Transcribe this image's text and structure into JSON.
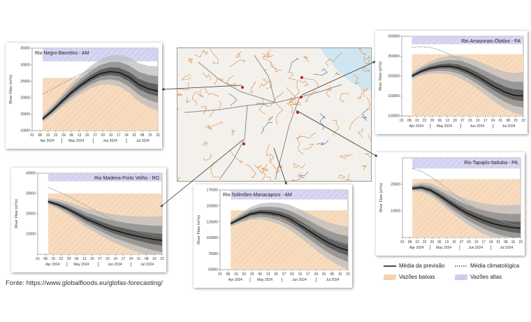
{
  "source": "Fonte: https://www.globalfloods.eu/glofas-forecasting/",
  "legend": {
    "forecast_mean": "Média da previsão",
    "clim_mean": "Média climatológica",
    "low_flows": "Vazões baixas",
    "high_flows": "Vazões altas"
  },
  "colors": {
    "low_fill": "#f7d8b8",
    "high_fill": "#d3d2f2",
    "band_outer": "#bdbdbd",
    "band_mid": "#8c8c8c",
    "band_inner": "#555555",
    "mean_line": "#111111",
    "river_map": "#d9843a",
    "arrow": "#333333"
  },
  "map": {
    "description_icon": "river-network-map"
  },
  "chart_data": [
    {
      "id": "negro",
      "type": "line",
      "title": "Rio Negro-Barcelos - AM",
      "ylabel": "River Flow (m³/s)",
      "ylim": [
        10000,
        35000
      ],
      "yticks": [
        10000,
        15000,
        20000,
        25000,
        30000,
        35000
      ],
      "xtick_labels": [
        "01",
        "08",
        "15",
        "22",
        "29",
        "06",
        "13",
        "20",
        "27",
        "03",
        "10",
        "17",
        "24",
        "01",
        "08",
        "15",
        "22"
      ],
      "month_labels": [
        "Apr 2024",
        "May 2024",
        "Jun 2024",
        "Jul 2024"
      ],
      "forecast_days": [
        0,
        7,
        14,
        21,
        28,
        35,
        42,
        49,
        56,
        63,
        70,
        77,
        84
      ],
      "mean": [
        13500,
        16000,
        18800,
        21500,
        23800,
        25800,
        27300,
        27900,
        27600,
        26200,
        24000,
        22700,
        22000
      ],
      "clim": [
        21000,
        22600,
        24200,
        25800,
        27200,
        28500,
        29400,
        29800,
        29700,
        28900,
        27500,
        26000,
        25000
      ],
      "low_threshold": [
        26000,
        26000,
        26000,
        26000,
        26000,
        26000,
        26000,
        26000,
        26000,
        26000,
        26000,
        26000,
        26000
      ],
      "high_threshold": [
        31000,
        31000,
        31000,
        31000,
        31000,
        31000,
        31000,
        31000,
        31000,
        31000,
        31000,
        31000,
        31000
      ]
    },
    {
      "id": "amazonas",
      "type": "line",
      "title": "Rio Amazonas-Óbidos - PA",
      "ylabel": "River Flow (m³/s)",
      "ylim": [
        100000,
        300000
      ],
      "yticks": [
        100000,
        150000,
        200000,
        250000,
        300000
      ],
      "xtick_labels": [
        "01",
        "08",
        "15",
        "22",
        "29",
        "06",
        "13",
        "20",
        "27",
        "03",
        "10",
        "17",
        "24",
        "01",
        "08",
        "15",
        "22"
      ],
      "month_labels": [
        "Apr 2024",
        "May 2024",
        "Jun 2024",
        "Jul 2024"
      ],
      "forecast_days": [
        0,
        7,
        14,
        21,
        28,
        35,
        42,
        49,
        56,
        63,
        70,
        77,
        84
      ],
      "mean": [
        200000,
        212000,
        220000,
        224000,
        225000,
        221000,
        212000,
        200000,
        186000,
        172000,
        160000,
        152000,
        150000
      ],
      "clim": [
        272000,
        274000,
        272000,
        265000,
        255000,
        243000,
        230000,
        217000,
        204000,
        191000,
        180000,
        170000,
        165000
      ],
      "low_threshold": [
        255000,
        255000,
        255000,
        255000,
        255000,
        255000,
        255000,
        255000,
        255000,
        255000,
        255000,
        255000,
        255000
      ],
      "high_threshold": [
        280000,
        280000,
        280000,
        280000,
        280000,
        280000,
        280000,
        280000,
        280000,
        280000,
        280000,
        280000,
        280000
      ]
    },
    {
      "id": "madeira",
      "type": "line",
      "title": "Rio Madeira-Porto Velho - RO",
      "ylabel": "River Flow (m³/s)",
      "ylim": [
        0,
        40000
      ],
      "yticks": [
        10000,
        20000,
        30000,
        40000
      ],
      "xtick_labels": [
        "01",
        "08",
        "15",
        "22",
        "29",
        "06",
        "13",
        "20",
        "27",
        "03",
        "10",
        "17",
        "24",
        "01",
        "08",
        "15",
        "22"
      ],
      "month_labels": [
        "Apr 2024",
        "May 2024",
        "Jun 2024",
        "Jul 2024"
      ],
      "forecast_days": [
        0,
        7,
        14,
        21,
        28,
        35,
        42,
        49,
        56,
        63,
        70,
        77,
        84
      ],
      "mean": [
        26000,
        24500,
        22500,
        20000,
        17500,
        15500,
        13500,
        11800,
        10500,
        9300,
        8300,
        7400,
        6800
      ],
      "clim": [
        33000,
        31000,
        29000,
        26500,
        24000,
        21500,
        19000,
        16500,
        14000,
        12000,
        10500,
        9500,
        8800
      ],
      "low_threshold": [
        30000,
        30000,
        30000,
        30000,
        30000,
        30000,
        30000,
        30000,
        30000,
        30000,
        30000,
        30000,
        30000
      ],
      "high_threshold": [
        36000,
        36000,
        36000,
        36000,
        36000,
        36000,
        36000,
        36000,
        36000,
        36000,
        36000,
        36000,
        36000
      ]
    },
    {
      "id": "solimoes",
      "type": "line",
      "title": "Rio Solimões-Manacapuru - AM",
      "ylabel": "River Flow (m³/s)",
      "ylim": [
        50000,
        175000
      ],
      "yticks": [
        50000,
        75000,
        100000,
        125000,
        150000,
        175000
      ],
      "xtick_labels": [
        "01",
        "08",
        "15",
        "22",
        "29",
        "06",
        "13",
        "20",
        "27",
        "03",
        "10",
        "17",
        "24",
        "01",
        "08",
        "15",
        "22"
      ],
      "month_labels": [
        "Apr 2024",
        "May 2024",
        "Jun 2024",
        "Jul 2024"
      ],
      "forecast_days": [
        0,
        7,
        14,
        21,
        28,
        35,
        42,
        49,
        56,
        63,
        70,
        77,
        84
      ],
      "mean": [
        122000,
        130000,
        137000,
        140000,
        139000,
        136000,
        130000,
        121000,
        111000,
        101000,
        92000,
        85000,
        80000
      ],
      "clim": [
        122000,
        126000,
        130000,
        133000,
        134000,
        133000,
        129000,
        123000,
        116000,
        108000,
        100000,
        93000,
        88000
      ],
      "low_threshold": [
        143000,
        143000,
        143000,
        143000,
        143000,
        143000,
        143000,
        143000,
        143000,
        143000,
        143000,
        143000,
        143000
      ],
      "high_threshold": [
        160000,
        160000,
        160000,
        160000,
        160000,
        160000,
        160000,
        160000,
        160000,
        160000,
        160000,
        160000,
        160000
      ]
    },
    {
      "id": "tapajos",
      "type": "line",
      "title": "Rio Tapajós-Itaituba - PA",
      "ylabel": "River Flow (m³/s)",
      "ylim": [
        0,
        30000
      ],
      "yticks": [
        10000,
        20000
      ],
      "xtick_labels": [
        "01",
        "08",
        "15",
        "22",
        "29",
        "06",
        "13",
        "20",
        "27",
        "03",
        "10",
        "17",
        "24",
        "01",
        "08",
        "15",
        "22"
      ],
      "month_labels": [
        "Apr 2024",
        "May 2024",
        "Jun 2024",
        "Jul 2024"
      ],
      "forecast_days": [
        0,
        7,
        14,
        21,
        28,
        35,
        42,
        49,
        56,
        63,
        70,
        77,
        84
      ],
      "mean": [
        18500,
        18800,
        17800,
        15800,
        13500,
        11300,
        9300,
        7700,
        6300,
        5200,
        4400,
        3800,
        3500
      ],
      "clim": [
        26000,
        25000,
        23000,
        20500,
        18000,
        15500,
        13000,
        11000,
        9000,
        7500,
        6000,
        5000,
        4300
      ],
      "low_threshold": [
        22000,
        22000,
        22000,
        22000,
        22000,
        22000,
        22000,
        22000,
        22000,
        22000,
        22000,
        22000,
        22000
      ],
      "high_threshold": [
        26000,
        26000,
        26000,
        26000,
        26000,
        26000,
        26000,
        26000,
        26000,
        26000,
        26000,
        26000,
        26000
      ]
    }
  ]
}
